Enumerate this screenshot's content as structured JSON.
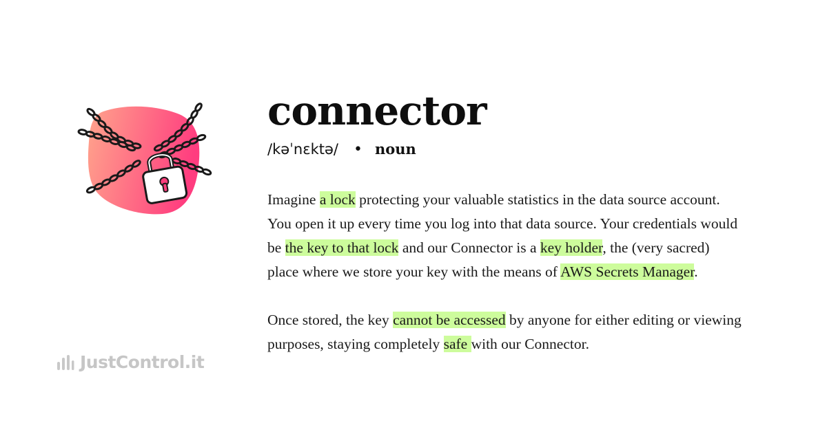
{
  "definition": {
    "term": "connector",
    "pronunciation": "/kəˈnɛktə/",
    "bullet": "•",
    "part_of_speech": "noun"
  },
  "paragraph1": {
    "t1": "Imagine ",
    "h1": "a lock",
    "t2": " protecting your valuable statistics in the data source account. You open it up every time you log into that data source. Your credentials would be ",
    "h2": "the key to that lock",
    "t3": " and our Connector is a ",
    "h3": "key holder",
    "t4": ", the (very sacred) place where we store your key with the means of ",
    "h4": "AWS Secrets Manager",
    "t5": "."
  },
  "paragraph2": {
    "t1": "Once stored, the key ",
    "h1": "cannot be accessed",
    "t2": " by anyone for either editing or viewing purposes, staying completely ",
    "h2": "safe ",
    "t3": "with our Connector."
  },
  "brand": {
    "name": "JustControl.it",
    "icon": "bar-chart-logo-icon"
  },
  "illustration": {
    "icon": "chained-padlock-icon",
    "colors": {
      "blob_start": "#ffa08a",
      "blob_end": "#ff3f7e",
      "keyhole": "#ff3f7e"
    }
  },
  "colors": {
    "highlight": "#cdfc9c",
    "text": "#111111",
    "brand_gray": "#c6c6c6"
  }
}
